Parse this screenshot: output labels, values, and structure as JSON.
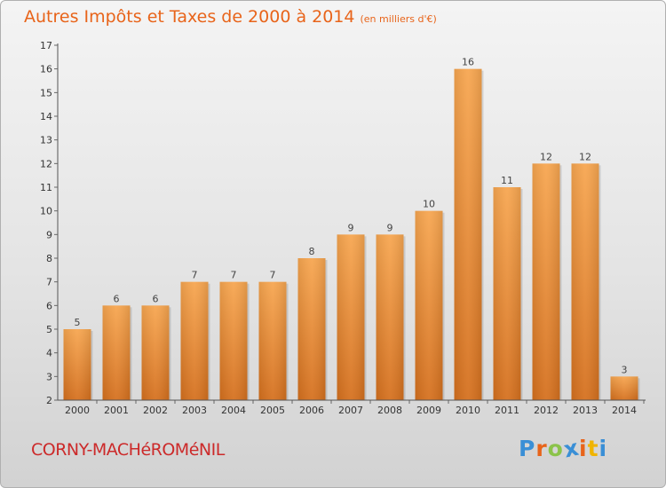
{
  "title": "Autres Impôts et Taxes de 2000 à 2014",
  "subtitle": "(en milliers d'€)",
  "commune": "CORNY-MACHéROMéNIL",
  "logo": {
    "letters": [
      "P",
      "r",
      "o",
      "x",
      "i",
      "t",
      "i"
    ],
    "colors": [
      "#3a8fd6",
      "#e8641a",
      "#8bc34a",
      "#3a8fd6",
      "#e8641a",
      "#f0b400",
      "#3a8fd6"
    ]
  },
  "colors": {
    "bar_light": "#f7a650",
    "bar_dark": "#d5701e",
    "title": "#e8641a",
    "commune": "#cc2a2a"
  },
  "chart_data": {
    "type": "bar",
    "title": "Autres Impôts et Taxes de 2000 à 2014",
    "subtitle": "(en milliers d'€)",
    "categories": [
      "2000",
      "2001",
      "2002",
      "2003",
      "2004",
      "2005",
      "2006",
      "2007",
      "2008",
      "2009",
      "2010",
      "2011",
      "2012",
      "2013",
      "2014"
    ],
    "values": [
      5,
      6,
      6,
      7,
      7,
      7,
      8,
      9,
      9,
      10,
      16,
      11,
      12,
      12,
      3
    ],
    "ylim": [
      2,
      17
    ],
    "yticks": [
      2,
      3,
      4,
      5,
      6,
      7,
      8,
      9,
      10,
      11,
      12,
      13,
      14,
      15,
      16,
      17
    ],
    "grid": false,
    "data_labels": true
  }
}
